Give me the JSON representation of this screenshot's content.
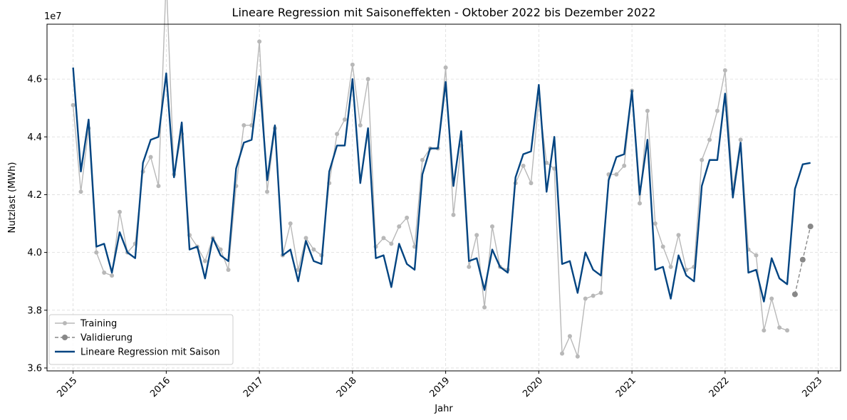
{
  "chart_data": {
    "type": "line",
    "title": "Lineare Regression mit Saisoneffekten - Oktober 2022 bis Dezember 2022",
    "xlabel": "Jahr",
    "ylabel": "Nutzlast (MWh)",
    "y_multiplier_label": "1e7",
    "y_scale": 10000000,
    "xlim": [
      2014.72,
      2023.24
    ],
    "ylim": [
      3.59,
      4.79
    ],
    "x_ticks": [
      2015,
      2016,
      2017,
      2018,
      2019,
      2020,
      2021,
      2022,
      2023
    ],
    "x_tick_labels": [
      "2015",
      "2016",
      "2017",
      "2018",
      "2019",
      "2020",
      "2021",
      "2022",
      "2023"
    ],
    "y_ticks": [
      3.6,
      3.8,
      4.0,
      4.2,
      4.4,
      4.6
    ],
    "y_tick_labels": [
      "3.6",
      "3.8",
      "4.0",
      "4.2",
      "4.4",
      "4.6"
    ],
    "grid": true,
    "legend_position": "lower-left",
    "x_start_year": 2015,
    "series": [
      {
        "name": "Training",
        "color": "#b8b8b8",
        "marker": "circle",
        "style": "solid",
        "start_month_index": 0,
        "values": [
          4.51,
          4.21,
          4.43,
          4.0,
          3.93,
          3.92,
          4.14,
          4.0,
          4.03,
          4.28,
          4.33,
          4.23,
          4.95,
          4.27,
          4.41,
          4.06,
          4.02,
          3.97,
          4.05,
          4.01,
          3.94,
          4.23,
          4.44,
          4.44,
          4.73,
          4.21,
          4.43,
          3.99,
          4.1,
          3.94,
          4.05,
          4.01,
          3.99,
          4.24,
          4.41,
          4.46,
          4.65,
          4.44,
          4.6,
          4.02,
          4.05,
          4.03,
          4.09,
          4.12,
          4.02,
          4.32,
          4.36,
          4.36,
          4.64,
          4.13,
          4.37,
          3.95,
          4.06,
          3.81,
          4.09,
          3.95,
          3.94,
          4.24,
          4.3,
          4.24,
          4.53,
          4.31,
          4.29,
          3.65,
          3.71,
          3.64,
          3.84,
          3.85,
          3.86,
          4.27,
          4.27,
          4.3,
          4.56,
          4.17,
          4.49,
          4.1,
          4.02,
          3.95,
          4.06,
          3.94,
          3.95,
          4.32,
          4.39,
          4.49,
          4.63,
          4.22,
          4.39,
          4.01,
          3.99,
          3.73,
          3.84,
          3.74,
          3.73
        ]
      },
      {
        "name": "Validierung",
        "color": "#888888",
        "marker": "circle",
        "style": "dashed",
        "start_month_index": 93,
        "values": [
          3.855,
          3.975,
          4.09
        ]
      },
      {
        "name": "Lineare Regression mit Saison",
        "color": "#024481",
        "marker": "none",
        "style": "solid",
        "start_month_index": 0,
        "values": [
          4.64,
          4.28,
          4.46,
          4.02,
          4.03,
          3.93,
          4.07,
          4.0,
          3.98,
          4.31,
          4.39,
          4.4,
          4.62,
          4.26,
          4.45,
          4.01,
          4.02,
          3.91,
          4.05,
          3.99,
          3.97,
          4.29,
          4.38,
          4.39,
          4.61,
          4.25,
          4.44,
          3.99,
          4.01,
          3.9,
          4.04,
          3.97,
          3.96,
          4.28,
          4.37,
          4.37,
          4.6,
          4.24,
          4.43,
          3.98,
          3.99,
          3.88,
          4.03,
          3.96,
          3.94,
          4.27,
          4.36,
          4.36,
          4.59,
          4.23,
          4.42,
          3.97,
          3.98,
          3.87,
          4.01,
          3.95,
          3.93,
          4.26,
          4.34,
          4.35,
          4.58,
          4.21,
          4.4,
          3.96,
          3.97,
          3.86,
          4.0,
          3.94,
          3.92,
          4.25,
          4.33,
          4.34,
          4.56,
          4.2,
          4.39,
          3.94,
          3.95,
          3.84,
          3.99,
          3.92,
          3.9,
          4.23,
          4.32,
          4.32,
          4.55,
          4.19,
          4.38,
          3.93,
          3.94,
          3.83,
          3.98,
          3.91,
          3.89,
          4.22,
          4.305,
          4.31
        ]
      }
    ]
  }
}
